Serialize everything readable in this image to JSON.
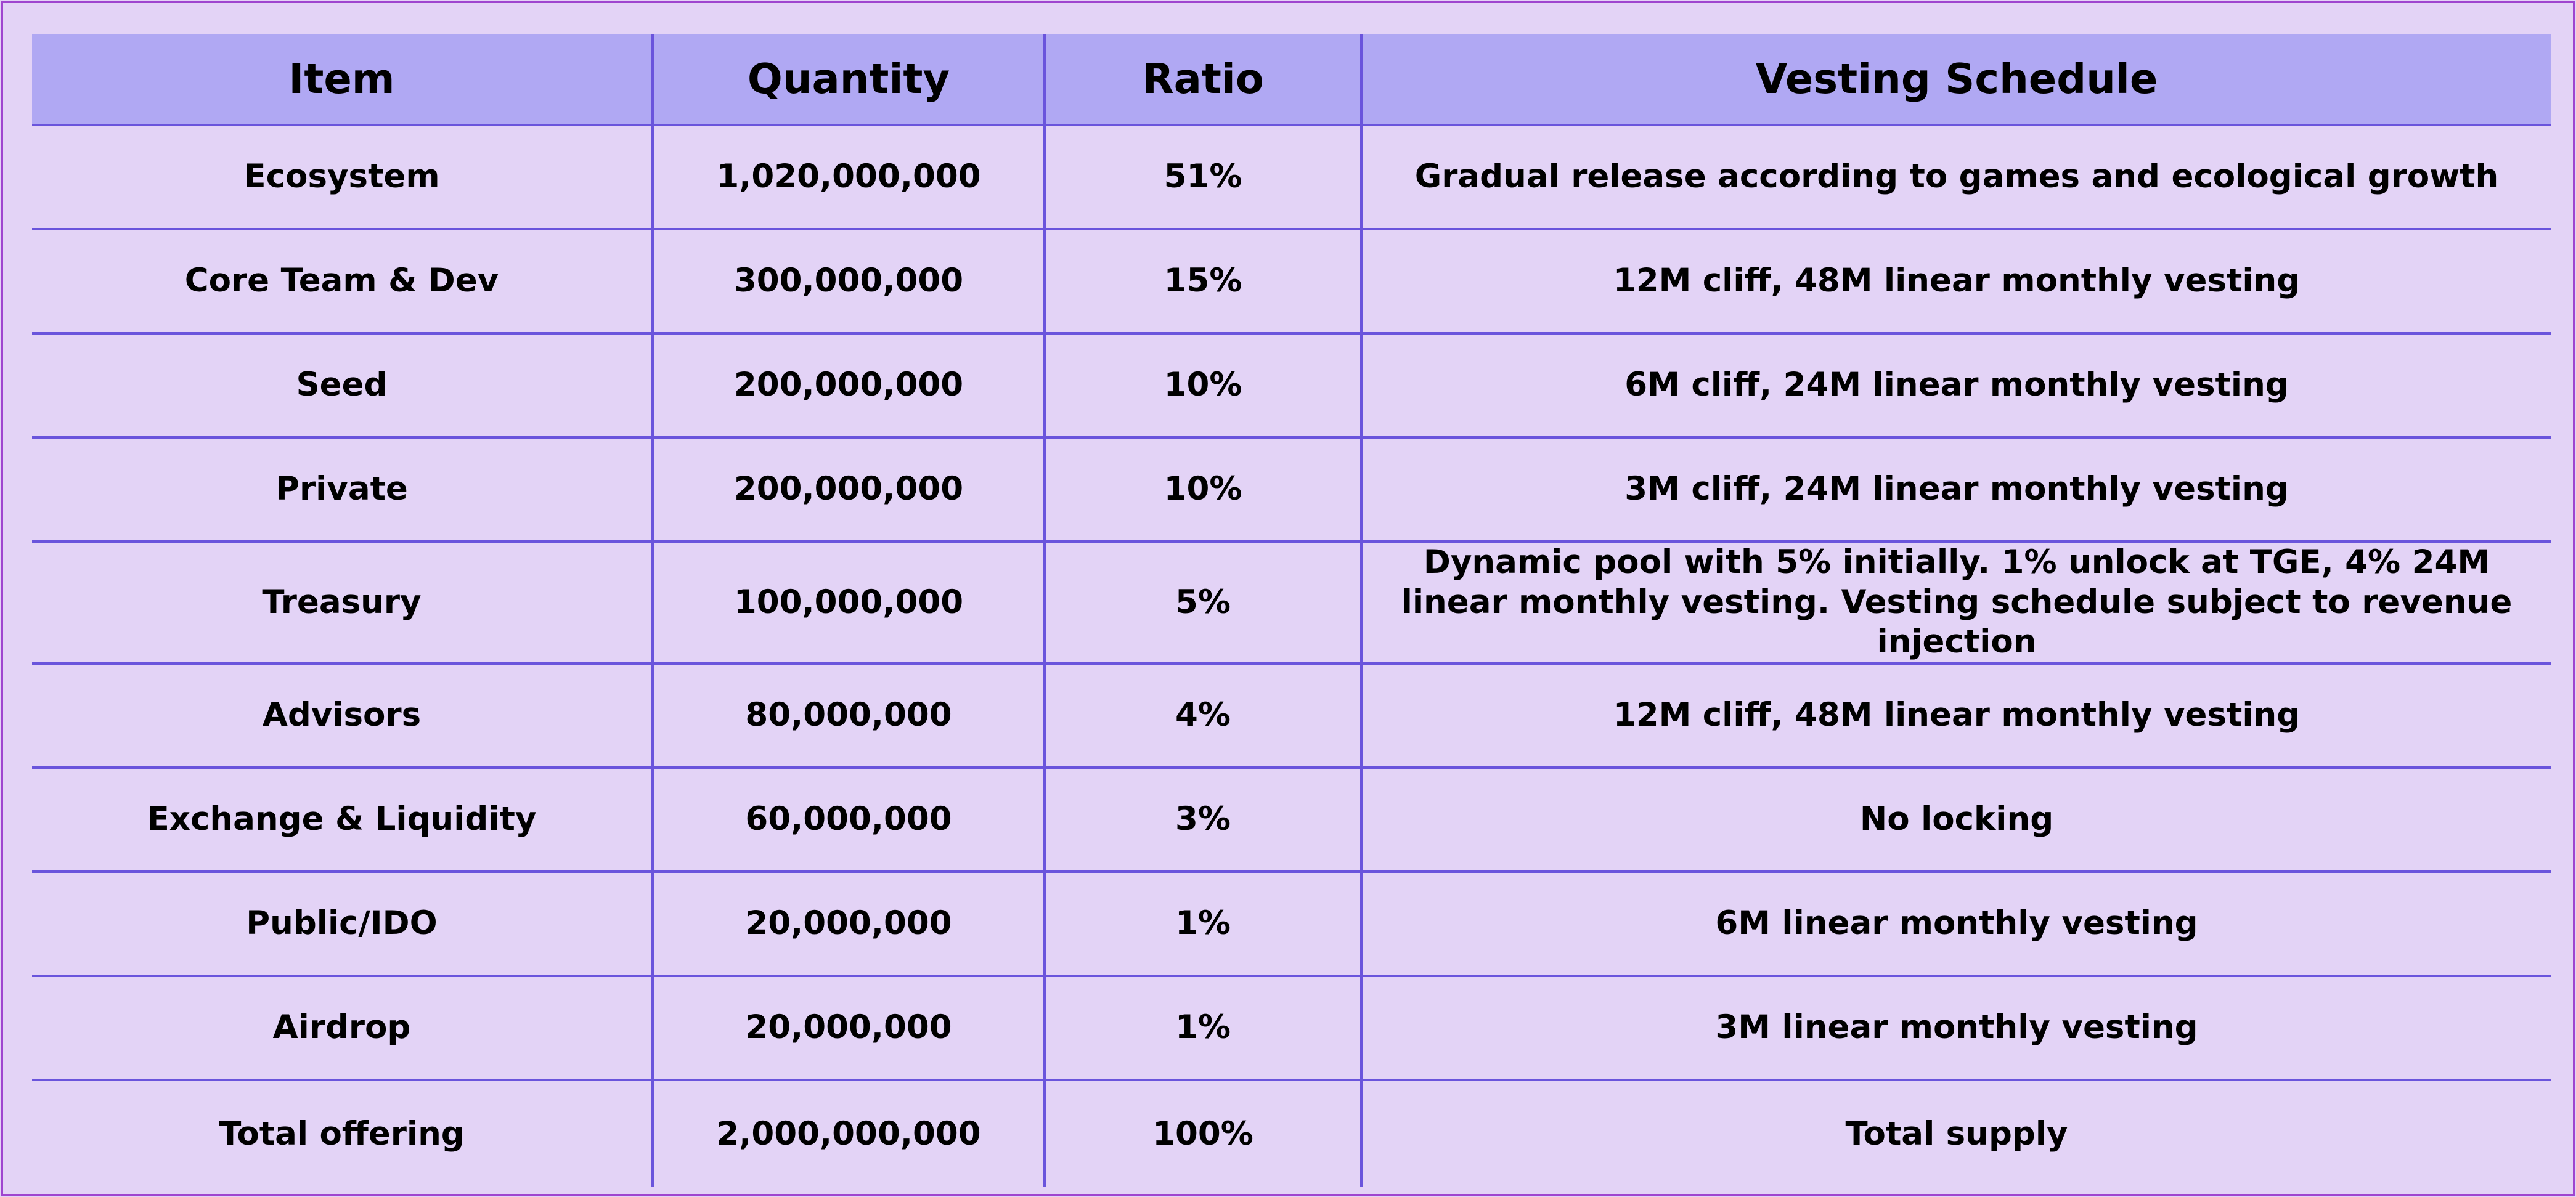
{
  "table": {
    "headers": {
      "item": "Item",
      "quantity": "Quantity",
      "ratio": "Ratio",
      "vesting": "Vesting Schedule"
    },
    "rows": [
      {
        "item": "Ecosystem",
        "quantity": "1,020,000,000",
        "ratio": "51%",
        "vesting": "Gradual release according to games and ecological growth"
      },
      {
        "item": "Core Team & Dev",
        "quantity": "300,000,000",
        "ratio": "15%",
        "vesting": "12M cliff, 48M linear monthly vesting"
      },
      {
        "item": "Seed",
        "quantity": "200,000,000",
        "ratio": "10%",
        "vesting": "6M cliff, 24M linear monthly vesting"
      },
      {
        "item": "Private",
        "quantity": "200,000,000",
        "ratio": "10%",
        "vesting": "3M cliff, 24M linear monthly vesting"
      },
      {
        "item": "Treasury",
        "quantity": "100,000,000",
        "ratio": "5%",
        "vesting": "Dynamic pool with 5% initially. 1% unlock at TGE, 4% 24M linear monthly vesting. Vesting schedule subject to revenue injection"
      },
      {
        "item": "Advisors",
        "quantity": "80,000,000",
        "ratio": "4%",
        "vesting": "12M cliff, 48M linear monthly vesting"
      },
      {
        "item": "Exchange & Liquidity",
        "quantity": "60,000,000",
        "ratio": "3%",
        "vesting": "No locking"
      },
      {
        "item": "Public/IDO",
        "quantity": "20,000,000",
        "ratio": "1%",
        "vesting": "6M linear monthly vesting"
      },
      {
        "item": "Airdrop",
        "quantity": "20,000,000",
        "ratio": "1%",
        "vesting": "3M linear monthly vesting"
      },
      {
        "item": "Total offering",
        "quantity": "2,000,000,000",
        "ratio": "100%",
        "vesting": "Total supply"
      }
    ]
  },
  "colors": {
    "page_background": "#e3d3f6",
    "frame_border": "#9f45cf",
    "header_background": "#b0a8f3",
    "grid_lines": "#6a54dc"
  }
}
